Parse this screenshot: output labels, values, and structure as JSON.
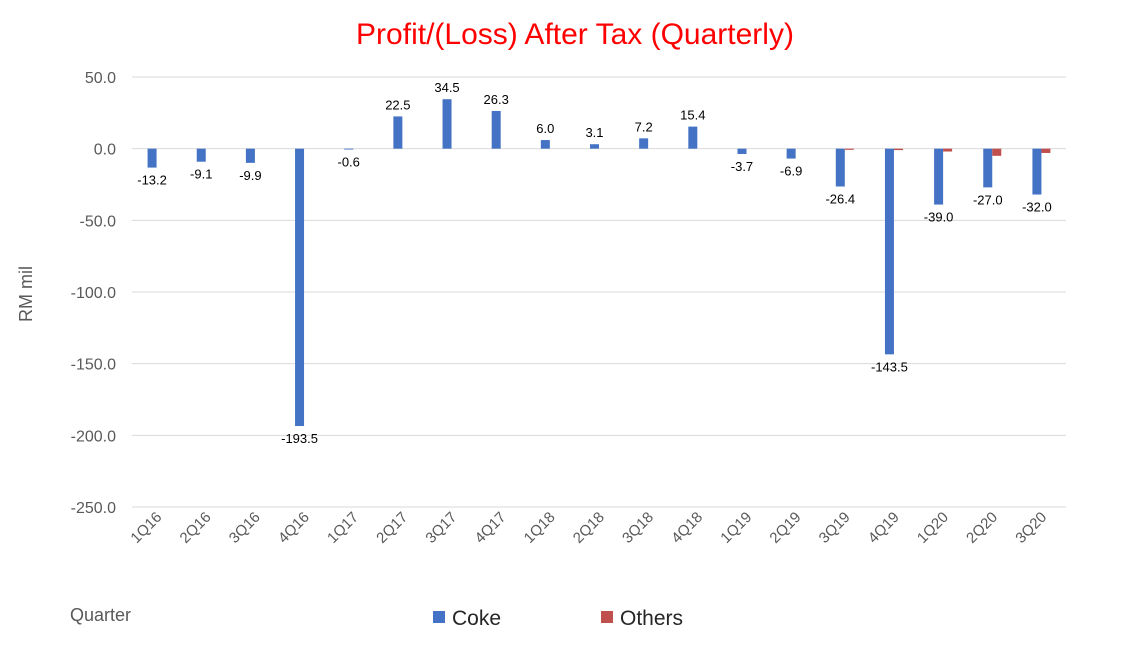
{
  "chart_data": {
    "type": "bar",
    "title": "Profit/(Loss) After Tax (Quarterly)",
    "xlabel": "Quarter",
    "ylabel": "RM mil",
    "ylim": [
      -250,
      50
    ],
    "yticks": [
      50,
      0,
      -50,
      -100,
      -150,
      -200,
      -250
    ],
    "ytick_labels": [
      "50.0",
      "0.0",
      "-50.0",
      "-100.0",
      "-150.0",
      "-200.0",
      "-250.0"
    ],
    "grid": true,
    "legend_position": "bottom",
    "categories": [
      "1Q16",
      "2Q16",
      "3Q16",
      "4Q16",
      "1Q17",
      "2Q17",
      "3Q17",
      "4Q17",
      "1Q18",
      "2Q18",
      "3Q18",
      "4Q18",
      "1Q19",
      "2Q19",
      "3Q19",
      "4Q19",
      "1Q20",
      "2Q20",
      "3Q20"
    ],
    "series": [
      {
        "name": "Coke",
        "color": "#4472c4",
        "values": [
          -13.2,
          -9.1,
          -9.9,
          -193.5,
          -0.6,
          22.5,
          34.5,
          26.3,
          6.0,
          3.1,
          7.2,
          15.4,
          -3.7,
          -6.9,
          -26.4,
          -143.5,
          -39.0,
          -27.0,
          -32.0
        ],
        "data_labels": [
          "-13.2",
          "-9.1",
          "-9.9",
          "-193.5",
          "-0.6",
          "22.5",
          "34.5",
          "26.3",
          "6.0",
          "3.1",
          "7.2",
          "15.4",
          "-3.7",
          "-6.9",
          "-26.4",
          "-143.5",
          "-39.0",
          "-27.0",
          "-32.0"
        ]
      },
      {
        "name": "Others",
        "color": "#c0504d",
        "values": [
          0,
          0,
          0,
          0,
          0,
          0,
          0,
          0,
          0,
          0,
          0,
          0,
          0,
          0,
          -0.8,
          -1.0,
          -2.0,
          -5.0,
          -3.0
        ]
      }
    ]
  },
  "style": {
    "title_color": "#ff0000",
    "grid_color": "#d9d9d9"
  }
}
